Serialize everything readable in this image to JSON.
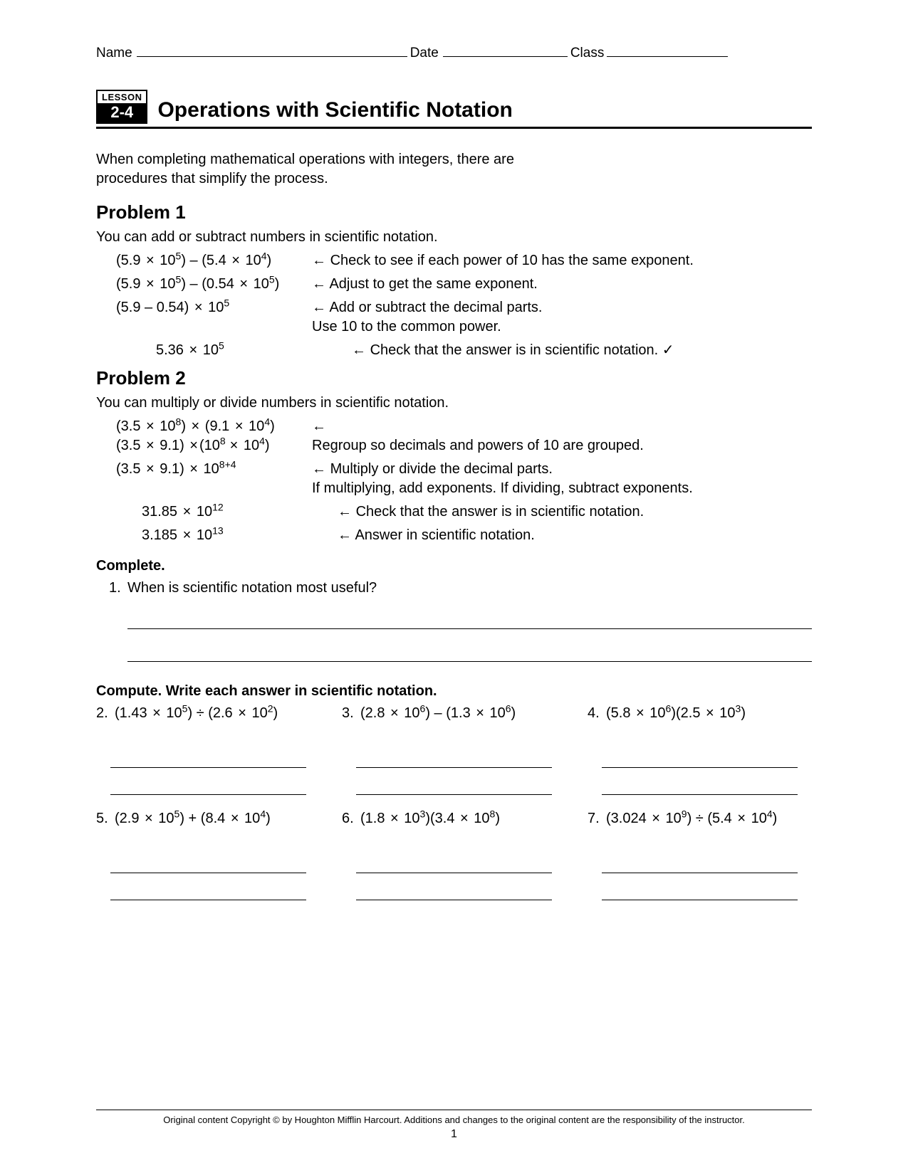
{
  "header": {
    "name_label": "Name",
    "date_label": "Date",
    "class_label": "Class"
  },
  "lesson": {
    "badge_label": "LESSON",
    "badge_number": "2-4",
    "title": "Operations with Scientific Notation"
  },
  "intro_line1": "When completing mathematical operations with integers, there are",
  "intro_line2": "procedures that simplify the process.",
  "problem1": {
    "heading": "Problem 1",
    "lead": "You can add or subtract numbers in scientific notation.",
    "rows": [
      {
        "left_html": "(5.9 <span class='times'>×</span> 10<sup>5</sup>) – (5.4 <span class='times'>×</span> 10<sup>4</sup>)",
        "right": "Check to see if each power of 10 has the same exponent.",
        "indent": ""
      },
      {
        "left_html": "(5.9 <span class='times'>×</span> 10<sup>5</sup>) – (0.54 <span class='times'>×</span> 10<sup>5</sup>)",
        "right": "Adjust to get the same exponent.",
        "indent": ""
      },
      {
        "left_html": "(5.9 – 0.54) <span class='times'>×</span> 10<sup>5</sup>",
        "right": "Add or subtract the decimal parts.<br>Use 10 to the common power.",
        "indent": ""
      },
      {
        "left_html": "5.36 <span class='times'>×</span> 10<sup>5</sup>",
        "right": "Check that the answer is in scientific notation.",
        "indent": "indent2",
        "check": true
      }
    ]
  },
  "problem2": {
    "heading": "Problem 2",
    "lead": "You can multiply or divide numbers in scientific notation.",
    "rows": [
      {
        "left_html": "(3.5 <span class='times'>×</span> 10<sup>8</sup>) <span class='times'>×</span> (9.1 <span class='times'>×</span> 10<sup>4</sup>)<br>(3.5 <span class='times'>×</span> 9.1) <span class='times'>×</span>(10<sup>8 </sup><span class='times'>×</span> 10<sup>4</sup>)",
        "right": "<br>Regroup so decimals and powers of 10 are grouped.",
        "indent": ""
      },
      {
        "left_html": "(3.5 <span class='times'>×</span> 9.1) <span class='times'>×</span> 10<sup>8+4</sup>",
        "right": "Multiply or divide the decimal parts.<br>If multiplying, add exponents. If dividing, subtract exponents.",
        "indent": ""
      },
      {
        "left_html": "31.85 <span class='times'>×</span> 10<sup>12</sup>",
        "right": "Check that the answer is in scientific notation.",
        "indent": "indent1"
      },
      {
        "left_html": "3.185 <span class='times'>×</span> 10<sup>13</sup>",
        "right": "Answer in scientific notation.",
        "indent": "indent1"
      }
    ]
  },
  "complete": {
    "heading": "Complete.",
    "q1_num": "1.",
    "q1_text": "When is scientific notation most useful?"
  },
  "compute": {
    "heading": "Compute. Write each answer in scientific notation.",
    "row1": [
      {
        "num": "2.",
        "html": "(1.43 <span class='times'>×</span> 10<sup>5</sup>) ÷ (2.6 <span class='times'>×</span> 10<sup>2</sup>)"
      },
      {
        "num": "3.",
        "html": "(2.8 <span class='times'>×</span> 10<sup>6</sup>) – (1.3 <span class='times'>×</span> 10<sup>6</sup>)"
      },
      {
        "num": "4.",
        "html": "(5.8 <span class='times'>×</span> 10<sup>6</sup>)(2.5 <span class='times'>×</span> 10<sup>3</sup>)"
      }
    ],
    "row2": [
      {
        "num": "5.",
        "html": "(2.9 <span class='times'>×</span> 10<sup>5</sup>) + (8.4 <span class='times'>×</span> 10<sup>4</sup>)"
      },
      {
        "num": "6.",
        "html": "(1.8 <span class='times'>×</span> 10<sup>3</sup>)(3.4 <span class='times'>×</span> 10<sup>8</sup>)"
      },
      {
        "num": "7.",
        "html": "(3.024 <span class='times'>×</span> 10<sup>9</sup>) ÷ (5.4 <span class='times'>×</span> 10<sup>4</sup>)"
      }
    ]
  },
  "footer": {
    "copyright": "Original content Copyright © by Houghton Mifflin Harcourt. Additions and changes to the original content are the responsibility of the instructor.",
    "page": "1"
  }
}
